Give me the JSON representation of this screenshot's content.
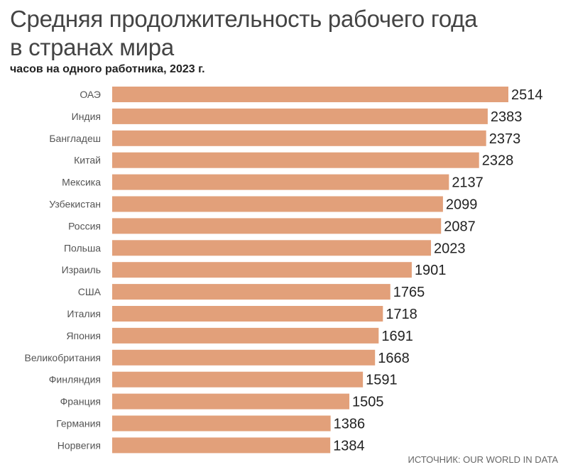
{
  "chart_data": {
    "type": "bar",
    "orientation": "horizontal",
    "title_line1": "Средняя продолжительность рабочего года",
    "title_line2": "в странах мира",
    "subtitle": "часов на одного работника, 2023 г.",
    "source": "ИСТОЧНИК: OUR WORLD IN DATA",
    "bar_color": "#e2a07a",
    "categories": [
      "ОАЭ",
      "Индия",
      "Бангладеш",
      "Китай",
      "Мексика",
      "Узбекистан",
      "Россия",
      "Польша",
      "Израиль",
      "США",
      "Италия",
      "Япония",
      "Великобритания",
      "Финляндия",
      "Франция",
      "Германия",
      "Норвегия"
    ],
    "values": [
      2514,
      2383,
      2373,
      2328,
      2137,
      2099,
      2087,
      2023,
      1901,
      1765,
      1718,
      1691,
      1668,
      1591,
      1505,
      1386,
      1384
    ],
    "xlim": [
      0,
      2514
    ],
    "grid": false
  }
}
